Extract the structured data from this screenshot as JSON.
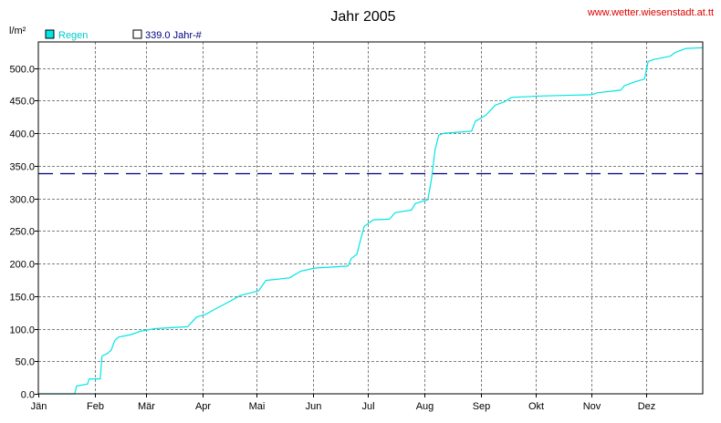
{
  "chart_data": {
    "type": "line",
    "title": "Jahr 2005",
    "source": "www.wetter.wiesenstadt.at.tt",
    "ylabel": "l/m²",
    "ylim": [
      0,
      540
    ],
    "y_ticks": [
      "0.0",
      "50.0",
      "100.0",
      "150.0",
      "200.0",
      "250.0",
      "300.0",
      "350.0",
      "400.0",
      "450.0",
      "500.0"
    ],
    "y_tick_values": [
      0,
      50,
      100,
      150,
      200,
      250,
      300,
      350,
      400,
      450,
      500
    ],
    "x_ticks": [
      "Jän",
      "Feb",
      "Mär",
      "Apr",
      "Mai",
      "Jun",
      "Jul",
      "Aug",
      "Sep",
      "Okt",
      "Nov",
      "Dez"
    ],
    "x_tick_days": [
      0,
      31,
      59,
      90,
      120,
      151,
      181,
      212,
      243,
      273,
      304,
      334
    ],
    "xlim": [
      0,
      365
    ],
    "grid": true,
    "legend_position": "top-left",
    "legend": [
      {
        "label": "Regen",
        "color": "#00e5e5"
      },
      {
        "label": "339.0 Jahr-#",
        "color": "#000080"
      }
    ],
    "series": [
      {
        "name": "Regen",
        "color": "#00e5e5",
        "points": [
          [
            0,
            0
          ],
          [
            20,
            0
          ],
          [
            21,
            12
          ],
          [
            27,
            15
          ],
          [
            28,
            23
          ],
          [
            34,
            23
          ],
          [
            35,
            58
          ],
          [
            38,
            62
          ],
          [
            40,
            67
          ],
          [
            42,
            82
          ],
          [
            44,
            87
          ],
          [
            51,
            91
          ],
          [
            56,
            96
          ],
          [
            64,
            100
          ],
          [
            82,
            103
          ],
          [
            87,
            118
          ],
          [
            92,
            122
          ],
          [
            97,
            130
          ],
          [
            104,
            140
          ],
          [
            111,
            151
          ],
          [
            121,
            158
          ],
          [
            125,
            174
          ],
          [
            138,
            178
          ],
          [
            144,
            188
          ],
          [
            152,
            193
          ],
          [
            170,
            196
          ],
          [
            172,
            208
          ],
          [
            175,
            214
          ],
          [
            176,
            225
          ],
          [
            179,
            257
          ],
          [
            184,
            267
          ],
          [
            193,
            268
          ],
          [
            196,
            278
          ],
          [
            205,
            282
          ],
          [
            207,
            292
          ],
          [
            214,
            298
          ],
          [
            216,
            330
          ],
          [
            218,
            375
          ],
          [
            220,
            397
          ],
          [
            223,
            400
          ],
          [
            238,
            403
          ],
          [
            240,
            418
          ],
          [
            246,
            428
          ],
          [
            251,
            443
          ],
          [
            256,
            448
          ],
          [
            260,
            455
          ],
          [
            276,
            457
          ],
          [
            304,
            459
          ],
          [
            307,
            462
          ],
          [
            320,
            466
          ],
          [
            322,
            473
          ],
          [
            328,
            479
          ],
          [
            333,
            483
          ],
          [
            335,
            510
          ],
          [
            338,
            513
          ],
          [
            347,
            518
          ],
          [
            350,
            524
          ],
          [
            356,
            530
          ],
          [
            365,
            531
          ]
        ]
      }
    ],
    "reference_line": {
      "name": "339.0 Jahr-#",
      "value": 339.0,
      "color": "#000080",
      "style": "dashed"
    }
  }
}
